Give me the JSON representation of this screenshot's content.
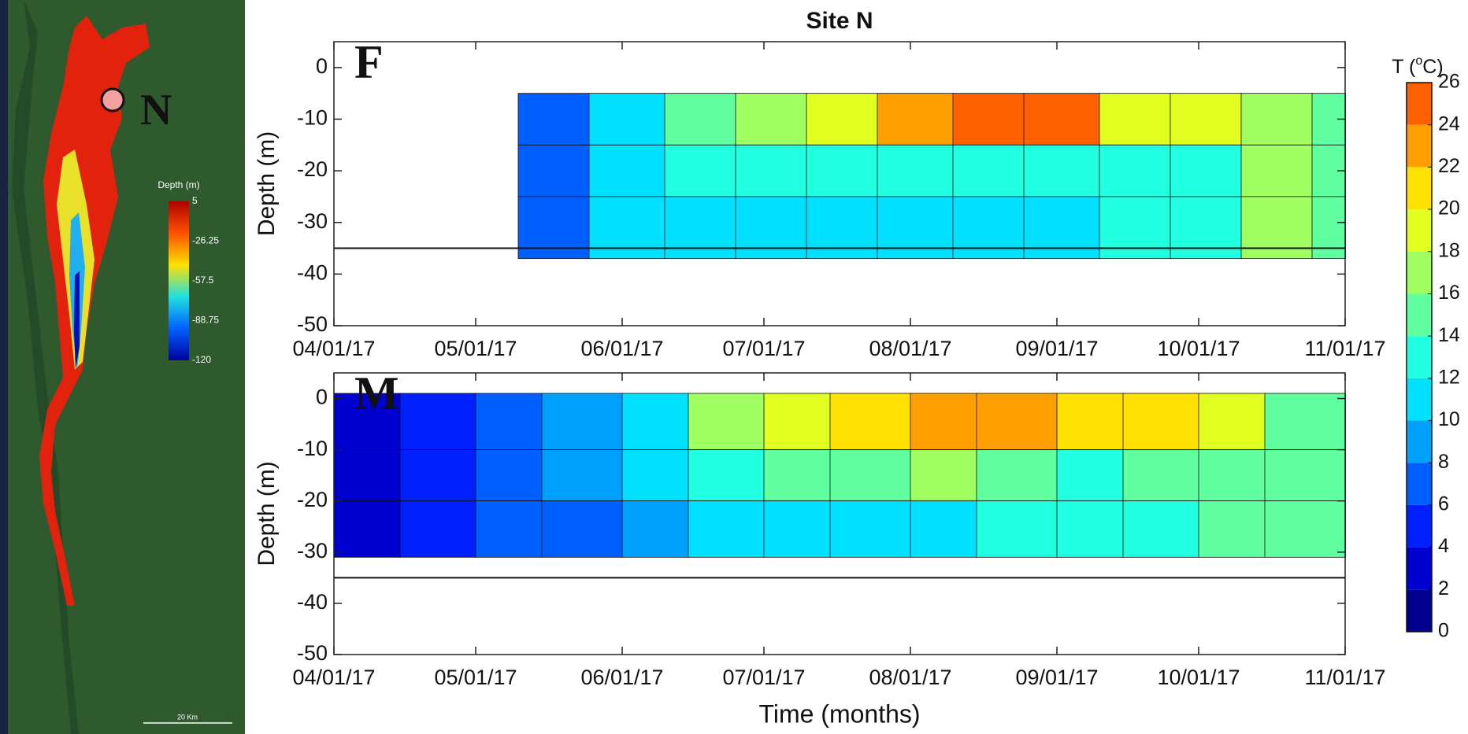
{
  "map": {
    "site_label": "N",
    "legend_title": "Depth (m)",
    "legend_ticks": [
      "5",
      "-26.25",
      "-57.5",
      "-88.75",
      "-120"
    ],
    "scale_label": "20 Km"
  },
  "chart_data": [
    {
      "type": "heatmap",
      "title": "Site N",
      "panel_label": "F",
      "y_label": "Depth (m)",
      "xlim": [
        "2017-04-01",
        "2017-11-01"
      ],
      "xticks": [
        {
          "value": "2017-04-01",
          "label": "04/01/17"
        },
        {
          "value": "2017-05-01",
          "label": "05/01/17"
        },
        {
          "value": "2017-06-01",
          "label": "06/01/17"
        },
        {
          "value": "2017-07-01",
          "label": "07/01/17"
        },
        {
          "value": "2017-08-01",
          "label": "08/01/17"
        },
        {
          "value": "2017-09-01",
          "label": "09/01/17"
        },
        {
          "value": "2017-10-01",
          "label": "10/01/17"
        },
        {
          "value": "2017-11-01",
          "label": "11/01/17"
        }
      ],
      "ylim": [
        -50,
        5
      ],
      "yticks": [
        0,
        -10,
        -20,
        -30,
        -40,
        -50
      ],
      "bottom_line": -35,
      "x_bins": [
        "2017-05-10",
        "2017-05-25",
        "2017-06-10",
        "2017-06-25",
        "2017-07-10",
        "2017-07-25",
        "2017-08-10",
        "2017-08-25",
        "2017-09-10",
        "2017-09-25",
        "2017-10-10",
        "2017-10-25",
        "2017-11-01"
      ],
      "depth_bins": [
        -5,
        -15,
        -25,
        -37
      ],
      "values": [
        [
          7,
          11,
          14,
          16,
          19,
          22,
          24,
          24,
          19,
          19,
          17,
          14
        ],
        [
          6,
          10,
          12,
          13,
          13,
          13,
          13,
          13,
          13,
          13,
          17,
          14
        ],
        [
          6,
          10,
          10,
          10,
          10,
          10,
          10,
          11,
          12,
          12,
          16,
          14
        ]
      ]
    },
    {
      "type": "heatmap",
      "panel_label": "M",
      "y_label": "Depth (m)",
      "x_label": "Time (months)",
      "xlim": [
        "2017-04-01",
        "2017-11-01"
      ],
      "xticks": [
        {
          "value": "2017-04-01",
          "label": "04/01/17"
        },
        {
          "value": "2017-05-01",
          "label": "05/01/17"
        },
        {
          "value": "2017-06-01",
          "label": "06/01/17"
        },
        {
          "value": "2017-07-01",
          "label": "07/01/17"
        },
        {
          "value": "2017-08-01",
          "label": "08/01/17"
        },
        {
          "value": "2017-09-01",
          "label": "09/01/17"
        },
        {
          "value": "2017-10-01",
          "label": "10/01/17"
        },
        {
          "value": "2017-11-01",
          "label": "11/01/17"
        }
      ],
      "ylim": [
        -50,
        5
      ],
      "yticks": [
        0,
        -10,
        -20,
        -30,
        -40,
        -50
      ],
      "bottom_line": -35,
      "x_bins": [
        "2017-04-01",
        "2017-04-15",
        "2017-05-01",
        "2017-05-15",
        "2017-06-01",
        "2017-06-15",
        "2017-07-01",
        "2017-07-15",
        "2017-08-01",
        "2017-08-15",
        "2017-09-01",
        "2017-09-15",
        "2017-10-01",
        "2017-10-15",
        "2017-11-01"
      ],
      "depth_bins": [
        1,
        -10,
        -20,
        -31
      ],
      "values": [
        [
          3,
          4,
          6,
          8,
          11,
          16,
          19,
          21,
          23,
          23,
          21,
          20,
          18,
          14
        ],
        [
          3,
          4,
          6,
          8,
          10,
          12,
          14,
          14,
          16,
          14,
          13,
          14,
          14,
          14
        ],
        [
          3,
          4,
          6,
          7,
          9,
          10,
          10,
          10,
          11,
          12,
          12,
          12,
          14,
          14
        ]
      ]
    }
  ],
  "colorbar": {
    "label_parts": [
      "T (",
      "o",
      "C)"
    ],
    "ticks": [
      0,
      2,
      4,
      6,
      8,
      10,
      12,
      14,
      16,
      18,
      20,
      22,
      24,
      26
    ],
    "colors": [
      "#00008f",
      "#0000d0",
      "#0020ff",
      "#0060ff",
      "#00a0ff",
      "#00e0ff",
      "#20ffdf",
      "#60ff9f",
      "#a0ff60",
      "#e0ff20",
      "#ffe000",
      "#ffa000",
      "#ff6000",
      "#ff2000",
      "#c00000"
    ]
  }
}
